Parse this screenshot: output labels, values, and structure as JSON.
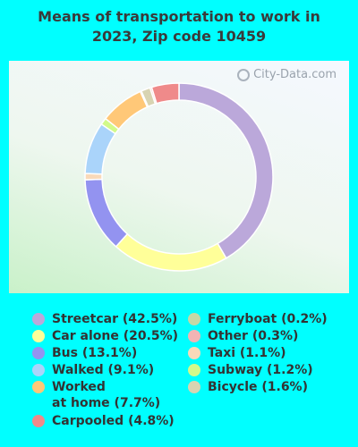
{
  "title_line1": "Means of transportation to work in",
  "title_line2": "2023, Zip code 10459",
  "watermark": "City-Data.com",
  "chart_data": {
    "type": "pie",
    "style": "donut",
    "title": "Means of transportation to work in 2023, Zip code 10459",
    "legend_placement": "bottom",
    "slices": [
      {
        "label": "Streetcar (42.5%)",
        "value": 42.5,
        "color": "#BBA8DA"
      },
      {
        "label": "Car alone (20.5%)",
        "value": 20.5,
        "color": "#FFFF99"
      },
      {
        "label": "Bus (13.1%)",
        "value": 13.1,
        "color": "#9393F0"
      },
      {
        "label": "Taxi (1.1%)",
        "value": 1.1,
        "color": "#F9D9B9"
      },
      {
        "label": "Walked (9.1%)",
        "value": 9.1,
        "color": "#AAD4FA"
      },
      {
        "label": "Subway (1.2%)",
        "value": 1.2,
        "color": "#D2FA8A"
      },
      {
        "label": "Worked\nat home (7.7%)",
        "value": 7.7,
        "color": "#FFC878"
      },
      {
        "label": "Ferryboat (0.2%)",
        "value": 0.2,
        "color": "#C4D8A6"
      },
      {
        "label": "Bicycle (1.6%)",
        "value": 1.6,
        "color": "#D8D4B2"
      },
      {
        "label": "Other (0.3%)",
        "value": 0.3,
        "color": "#F2B4B4"
      },
      {
        "label": "Carpooled (4.8%)",
        "value": 4.8,
        "color": "#EF8A8A"
      }
    ],
    "legend_order": [
      "Streetcar (42.5%)",
      "Car alone (20.5%)",
      "Bus (13.1%)",
      "Walked (9.1%)",
      "Worked\nat home (7.7%)",
      "Carpooled (4.8%)",
      "Ferryboat (0.2%)",
      "Other (0.3%)",
      "Taxi (1.1%)",
      "Subway (1.2%)",
      "Bicycle (1.6%)"
    ]
  }
}
